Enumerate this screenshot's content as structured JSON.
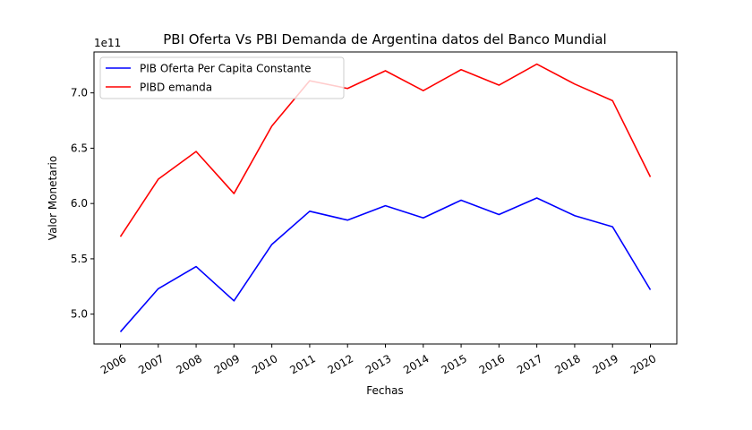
{
  "chart_data": {
    "type": "line",
    "title": "PBI Oferta Vs PBI Demanda de Argentina datos del Banco Mundial",
    "xlabel": "Fechas",
    "ylabel": "Valor Monetario",
    "y_offset_label": "1e11",
    "y_scale_exponent": 11,
    "categories": [
      "2006",
      "2007",
      "2008",
      "2009",
      "2010",
      "2011",
      "2012",
      "2013",
      "2014",
      "2015",
      "2016",
      "2017",
      "2018",
      "2019",
      "2020"
    ],
    "yticks": [
      5.0,
      5.5,
      6.0,
      6.5,
      7.0
    ],
    "ylim": [
      4.73,
      7.37
    ],
    "grid": false,
    "legend_position": "upper-left",
    "series": [
      {
        "name": "PIB Oferta Per Capita Constante",
        "color": "#0000ff",
        "values": [
          4.84,
          5.23,
          5.43,
          5.12,
          5.63,
          5.93,
          5.85,
          5.98,
          5.87,
          6.03,
          5.9,
          6.05,
          5.89,
          5.79,
          5.22
        ]
      },
      {
        "name": "PIBD emanda",
        "color": "#ff0000",
        "values": [
          5.7,
          6.22,
          6.47,
          6.09,
          6.7,
          7.11,
          7.04,
          7.2,
          7.02,
          7.21,
          7.07,
          7.26,
          7.08,
          6.93,
          6.24
        ]
      }
    ]
  }
}
